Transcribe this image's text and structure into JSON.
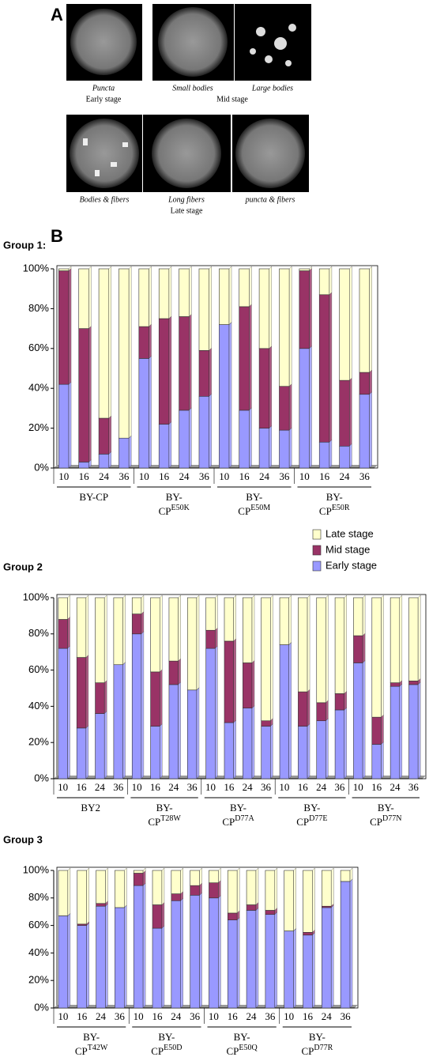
{
  "panel_a": {
    "label": "A",
    "captions": [
      "Puncta",
      "Small bodies",
      "Large bodies",
      "Bodies & fibers",
      "Long fibers",
      "puncta & fibers"
    ],
    "stages": [
      "Early stage",
      "Mid stage",
      "Late stage"
    ]
  },
  "panel_b_label": "B",
  "chart_data": [
    {
      "type": "bar",
      "stacked": true,
      "title": "Group 1:",
      "categories": [
        "10",
        "16",
        "24",
        "36",
        "10",
        "16",
        "24",
        "36",
        "10",
        "16",
        "24",
        "36",
        "10",
        "16",
        "24",
        "36"
      ],
      "groups": [
        {
          "label": "BY-CP"
        },
        {
          "label": "BY-CP",
          "sup": "E50K"
        },
        {
          "label": "BY-CP",
          "sup": "E50M"
        },
        {
          "label": "BY-CP",
          "sup": "E50R"
        }
      ],
      "series": [
        {
          "name": "Early stage",
          "color": "#9999ff",
          "values": [
            42,
            3,
            7,
            15,
            55,
            22,
            29,
            36,
            72,
            29,
            20,
            19,
            60,
            13,
            11,
            37
          ]
        },
        {
          "name": "Mid stage",
          "color": "#993366",
          "values": [
            57,
            67,
            18,
            0,
            16,
            53,
            47,
            23,
            0,
            52,
            40,
            22,
            39,
            74,
            33,
            11
          ]
        },
        {
          "name": "Late stage",
          "color": "#ffffcc",
          "values": [
            1,
            30,
            75,
            85,
            29,
            25,
            24,
            41,
            28,
            19,
            40,
            59,
            1,
            13,
            56,
            52
          ]
        }
      ],
      "ylim": [
        0,
        100
      ],
      "yticks": [
        {
          "value": 0,
          "label": "0%"
        },
        {
          "value": 20,
          "label": "20%"
        },
        {
          "value": 40,
          "label": "40%"
        },
        {
          "value": 60,
          "label": "60%"
        },
        {
          "value": 80,
          "label": "80%"
        },
        {
          "value": 100,
          "label": "100%"
        }
      ]
    },
    {
      "type": "bar",
      "stacked": true,
      "title": "Group 2",
      "legend": "above-right",
      "categories": [
        "10",
        "16",
        "24",
        "36",
        "10",
        "16",
        "24",
        "36",
        "10",
        "16",
        "24",
        "36",
        "10",
        "16",
        "24",
        "36",
        "10",
        "16",
        "24",
        "36"
      ],
      "groups": [
        {
          "label": "BY2"
        },
        {
          "label": "BY-CP",
          "sup": "T28W"
        },
        {
          "label": "BY-CP",
          "sup": "D77A"
        },
        {
          "label": "BY-CP",
          "sup": "D77E"
        },
        {
          "label": "BY-CP",
          "sup": "D77N"
        }
      ],
      "series": [
        {
          "name": "Early stage",
          "color": "#9999ff",
          "values": [
            72,
            28,
            36,
            63,
            80,
            29,
            52,
            49,
            72,
            31,
            39,
            29,
            74,
            29,
            32,
            38,
            64,
            19,
            51,
            52
          ]
        },
        {
          "name": "Mid stage",
          "color": "#993366",
          "values": [
            16,
            39,
            17,
            0,
            11,
            30,
            13,
            0,
            10,
            45,
            25,
            3,
            0,
            19,
            10,
            9,
            15,
            15,
            2,
            2
          ]
        },
        {
          "name": "Late stage",
          "color": "#ffffcc",
          "values": [
            12,
            33,
            47,
            37,
            9,
            41,
            35,
            51,
            18,
            24,
            36,
            68,
            26,
            52,
            58,
            53,
            21,
            66,
            47,
            46
          ]
        }
      ],
      "ylim": [
        0,
        100
      ],
      "yticks": [
        {
          "value": 0,
          "label": "0%"
        },
        {
          "value": 20,
          "label": "20%"
        },
        {
          "value": 40,
          "label": "40%"
        },
        {
          "value": 60,
          "label": "60%"
        },
        {
          "value": 80,
          "label": "80%"
        },
        {
          "value": 100,
          "label": "100%"
        }
      ]
    },
    {
      "type": "bar",
      "stacked": true,
      "title": "Group 3",
      "categories": [
        "10",
        "16",
        "24",
        "36",
        "10",
        "16",
        "24",
        "36",
        "10",
        "16",
        "24",
        "36",
        "10",
        "16",
        "24",
        "36"
      ],
      "groups": [
        {
          "label": "BY-CP",
          "sup": "T42W"
        },
        {
          "label": "BY-CP",
          "sup": "E50D"
        },
        {
          "label": "BY-CP",
          "sup": "E50Q"
        },
        {
          "label": "BY-CP",
          "sup": "D77R"
        }
      ],
      "series": [
        {
          "name": "Early stage",
          "color": "#9999ff",
          "values": [
            67,
            60,
            74,
            73,
            89,
            58,
            78,
            82,
            80,
            64,
            71,
            68,
            56,
            53,
            73,
            92
          ]
        },
        {
          "name": "Mid stage",
          "color": "#993366",
          "values": [
            0,
            1,
            2,
            0,
            9,
            17,
            5,
            7,
            11,
            5,
            4,
            3,
            0,
            2,
            1,
            0
          ]
        },
        {
          "name": "Late stage",
          "color": "#ffffcc",
          "values": [
            33,
            39,
            24,
            27,
            2,
            25,
            17,
            11,
            9,
            31,
            25,
            29,
            44,
            45,
            26,
            8
          ]
        }
      ],
      "ylim": [
        0,
        100
      ],
      "yticks": [
        {
          "value": 0,
          "label": "0%"
        },
        {
          "value": 20,
          "label": "20%"
        },
        {
          "value": 40,
          "label": "40%"
        },
        {
          "value": 60,
          "label": "60%"
        },
        {
          "value": 80,
          "label": "80%"
        },
        {
          "value": 100,
          "label": "100%"
        }
      ]
    }
  ]
}
